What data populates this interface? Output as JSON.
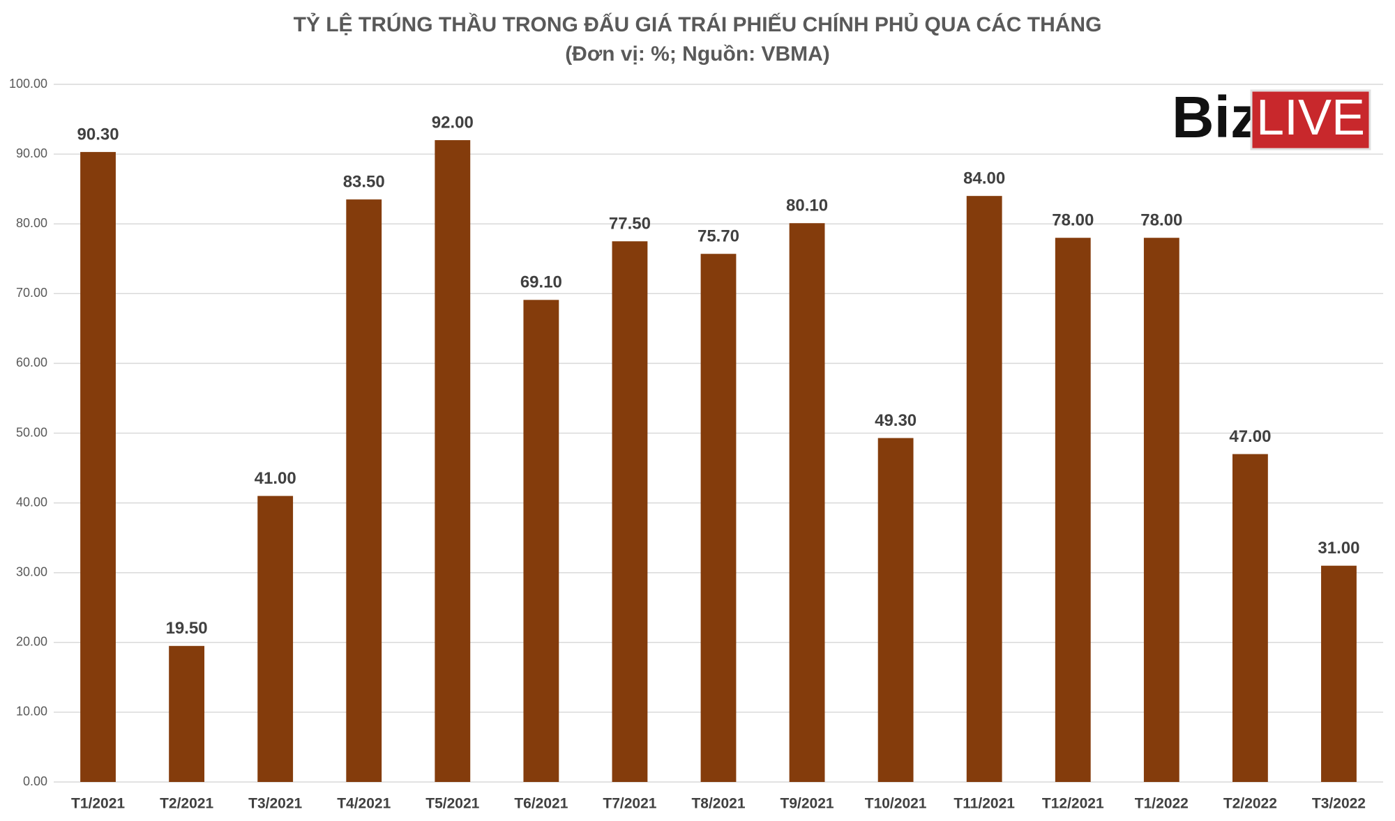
{
  "chart_data": {
    "type": "bar",
    "title": "TỶ LỆ TRÚNG THẦU TRONG ĐẤU GIÁ TRÁI PHIẾU CHÍNH PHỦ QUA CÁC THÁNG",
    "subtitle": "(Đơn vị: %; Nguồn: VBMA)",
    "categories": [
      "T1/2021",
      "T2/2021",
      "T3/2021",
      "T4/2021",
      "T5/2021",
      "T6/2021",
      "T7/2021",
      "T8/2021",
      "T9/2021",
      "T10/2021",
      "T11/2021",
      "T12/2021",
      "T1/2022",
      "T2/2022",
      "T3/2022"
    ],
    "values": [
      90.3,
      19.5,
      41,
      83.5,
      92,
      69.1,
      77.5,
      75.7,
      80.1,
      49.3,
      84,
      78,
      78,
      47,
      31
    ],
    "value_labels": [
      "90.30",
      "19.50",
      "41.00",
      "83.50",
      "92.00",
      "69.10",
      "77.50",
      "75.70",
      "80.10",
      "49.30",
      "84.00",
      "78.00",
      "78.00",
      "47.00",
      "31.00"
    ],
    "color": "#843c0c",
    "ylim": [
      0,
      100
    ],
    "yticks": [
      {
        "value": 0,
        "label": "0.00"
      },
      {
        "value": 10,
        "label": "10.00"
      },
      {
        "value": 20,
        "label": "20.00"
      },
      {
        "value": 30,
        "label": "30.00"
      },
      {
        "value": 40,
        "label": "40.00"
      },
      {
        "value": 50,
        "label": "50.00"
      },
      {
        "value": 60,
        "label": "60.00"
      },
      {
        "value": 70,
        "label": "70.00"
      },
      {
        "value": 80,
        "label": "80.00"
      },
      {
        "value": 90,
        "label": "90.00"
      },
      {
        "value": 100,
        "label": "100.00"
      }
    ],
    "grid": true
  },
  "logo": {
    "biz": "Biz",
    "live": "LIVE"
  }
}
